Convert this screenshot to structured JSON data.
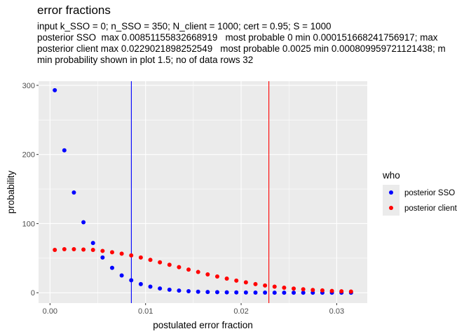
{
  "title": "error fractions",
  "subtitle_lines": [
    "input k_SSO = 0; n_SSO = 350; N_client = 1000; cert = 0.95; S = 1000",
    "posterior SSO  max 0.00851155832668919   most probable 0 min 0.000151668241756917; max",
    "posterior client max 0.0229021898252549   most probable 0.0025 min 0.000809959721121438; m",
    "min probability shown in plot 1.5; no of data rows 32"
  ],
  "colors": {
    "panel_bg": "#ebebeb",
    "grid_major": "#ffffff",
    "sso": "#0000ff",
    "client": "#ff0000"
  },
  "chart_data": {
    "type": "scatter",
    "xlabel": "postulated error fraction",
    "ylabel": "probability",
    "xlim": [
      -0.0012,
      0.0332
    ],
    "ylim": [
      -15,
      306
    ],
    "x_ticks": [
      0.0,
      0.01,
      0.02,
      0.03
    ],
    "x_tick_labels": [
      "0.00",
      "0.01",
      "0.02",
      "0.03"
    ],
    "y_ticks": [
      0,
      100,
      200,
      300
    ],
    "y_tick_labels": [
      "0",
      "100",
      "200",
      "300"
    ],
    "legend": {
      "title": "who",
      "position": "right",
      "entries": [
        "posterior SSO",
        "posterior client"
      ]
    },
    "vlines": [
      {
        "x": 0.00851155832668919,
        "series": "posterior SSO"
      },
      {
        "x": 0.0229021898252549,
        "series": "posterior client"
      }
    ],
    "x": [
      0.0005,
      0.0015,
      0.0025,
      0.0035,
      0.0045,
      0.0055,
      0.0065,
      0.0075,
      0.0085,
      0.0095,
      0.0105,
      0.0115,
      0.0125,
      0.0135,
      0.0145,
      0.0155,
      0.0165,
      0.0175,
      0.0185,
      0.0195,
      0.0205,
      0.0215,
      0.0225,
      0.0235,
      0.0245,
      0.0255,
      0.0265,
      0.0275,
      0.0285,
      0.0295,
      0.0305,
      0.0315
    ],
    "series": [
      {
        "name": "posterior SSO",
        "values": [
          293,
          206,
          145,
          102,
          72,
          51,
          36,
          25,
          18,
          12.5,
          8.8,
          6.2,
          4.4,
          3.1,
          2.2,
          1.5,
          1.1,
          0.8,
          0.55,
          0.4,
          0.3,
          0.2,
          0.15,
          0.1,
          0.07,
          0.05,
          0.04,
          0.03,
          0.02,
          0.015,
          0.01,
          0.007
        ]
      },
      {
        "name": "posterior client",
        "values": [
          62,
          63,
          63,
          62.5,
          62,
          60.5,
          58.5,
          56.5,
          54,
          51,
          47.5,
          44,
          40.5,
          37,
          33.5,
          30,
          26.5,
          23.5,
          20.5,
          17.5,
          15,
          12.5,
          10.5,
          8.8,
          7.3,
          6,
          5,
          4,
          3.3,
          2.6,
          2.1,
          1.7
        ]
      }
    ]
  }
}
